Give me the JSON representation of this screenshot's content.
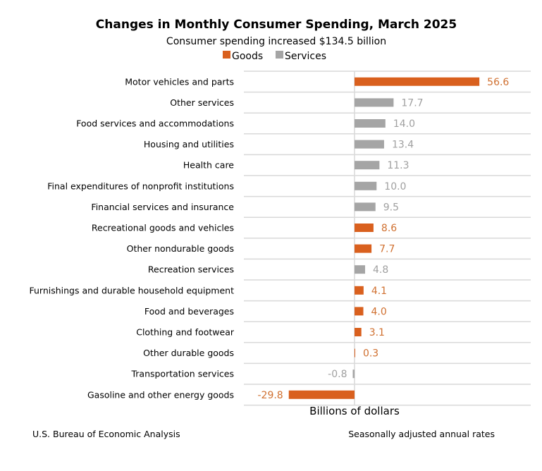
{
  "chart_data": {
    "type": "bar",
    "orientation": "horizontal",
    "title": "Changes in Monthly Consumer Spending, March 2025",
    "subtitle": "Consumer spending increased $134.5 billion",
    "xlabel": "Billions of dollars",
    "legend": [
      {
        "name": "Goods",
        "color": "#d9601e"
      },
      {
        "name": "Services",
        "color": "#a5a5a5"
      }
    ],
    "legend_position": "top",
    "grid": true,
    "xlim": [
      -30,
      60
    ],
    "categories": [
      "Motor vehicles and parts",
      "Other services",
      "Food services and accommodations",
      "Housing and utilities",
      "Health care",
      "Final expenditures of nonprofit institutions",
      "Financial services and insurance",
      "Recreational goods and vehicles",
      "Other nondurable goods",
      "Recreation services",
      "Furnishings and durable household equipment",
      "Food and beverages",
      "Clothing and footwear",
      "Other durable goods",
      "Transportation services",
      "Gasoline and other energy goods"
    ],
    "values": [
      56.6,
      17.7,
      14.0,
      13.4,
      11.3,
      10.0,
      9.5,
      8.6,
      7.7,
      4.8,
      4.1,
      4.0,
      3.1,
      0.3,
      -0.8,
      -29.8
    ],
    "labels": [
      "56.6",
      "17.7",
      "14.0",
      "13.4",
      "11.3",
      "10.0",
      "9.5",
      "8.6",
      "7.7",
      "4.8",
      "4.1",
      "4.0",
      "3.1",
      "0.3",
      "-0.8",
      "-29.8"
    ],
    "series_type": [
      "Goods",
      "Services",
      "Services",
      "Services",
      "Services",
      "Services",
      "Services",
      "Goods",
      "Goods",
      "Services",
      "Goods",
      "Goods",
      "Goods",
      "Goods",
      "Services",
      "Goods"
    ],
    "source": "U.S. Bureau of Economic Analysis",
    "note": "Seasonally adjusted annual rates"
  }
}
